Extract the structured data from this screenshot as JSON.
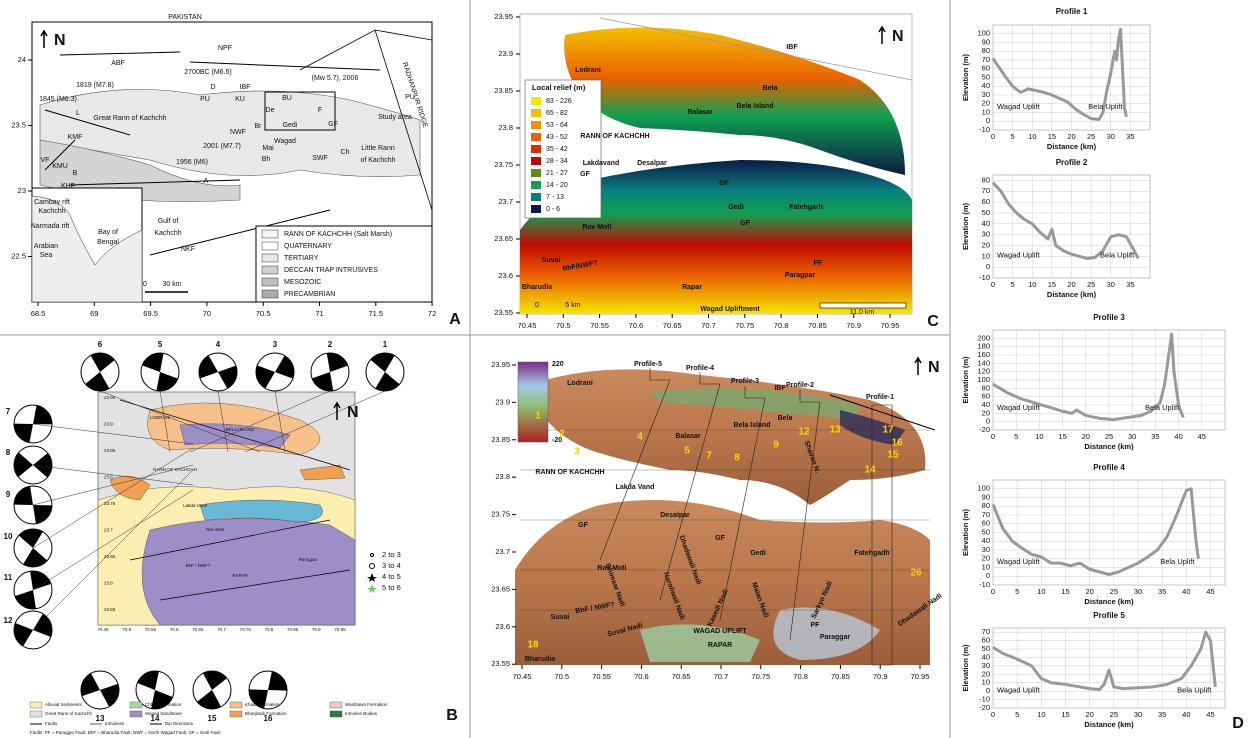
{
  "panel_a": {
    "letter": "A",
    "north": "N",
    "labels": [
      "PAKISTAN",
      "ABF",
      "1819 (M7.8)",
      "1845 (M6.3)",
      "L",
      "NPF",
      "2700BC (M6.5)",
      "(Mw 5.7), 2006",
      "IBF",
      "D",
      "KU",
      "PU",
      "BU",
      "PU",
      "De",
      "F",
      "Study area",
      "Great Rann of Kachchh",
      "Gedi",
      "GF",
      "Br",
      "NWF",
      "KMF",
      "Wagad",
      "2001 (M7.7)",
      "Mai",
      "Little Rann",
      "of Kachchh",
      "VF",
      "Bh",
      "SWF",
      "Ch",
      "KMU",
      "1956 (M6)",
      "B",
      "A",
      "KHF",
      "Gulf of",
      "Kachchh",
      "NKF",
      "Cambay rift",
      "Kachchh",
      "Narmada rift",
      "Arabian",
      "Sea",
      "Bay of",
      "Bengal",
      "RADHANPUR RIDGE"
    ],
    "legend": [
      "RANN OF KACHCHH (Salt Marsh)",
      "QUATERNARY",
      "TERTIARY",
      "DECCAN TRAP INTRUSIVES",
      "MESOZOIC",
      "PRECAMBRIAN"
    ],
    "scale_zero": "0",
    "scale": "30 km",
    "xticks": [
      68.5,
      69,
      69.5,
      70,
      70.5,
      71,
      71.5,
      72
    ],
    "yticks": [
      24,
      23.5,
      23,
      22.5
    ]
  },
  "panel_b": {
    "letter": "B",
    "north": "N",
    "mechanisms": [
      "1",
      "2",
      "3",
      "4",
      "5",
      "6",
      "7",
      "8",
      "9",
      "10",
      "11",
      "12",
      "13",
      "14",
      "15",
      "16"
    ],
    "map_labels": [
      "RANN OF KACHCHH",
      "LODRANI",
      "BELA ISLAND",
      "Lakda Vand",
      "Rav Moti",
      "BhF / NWF?",
      "Paragpar",
      "RAPAR"
    ],
    "magnitudes": [
      "2 to 3",
      "3 to 4",
      "4 to 5",
      "5 to 6"
    ],
    "legend": [
      {
        "label": "Alluvial Sediments",
        "color": "#fbeeb0"
      },
      {
        "label": "Chhara Formation",
        "color": "#a8d8a0"
      },
      {
        "label": "Khadir Formation",
        "color": "#f6c08a"
      },
      {
        "label": "Washtawa Formation",
        "color": "#f4c6d0"
      },
      {
        "label": "Great Rann of Kachchh",
        "color": "#e2e2e2"
      },
      {
        "label": "Wagad Sandstone",
        "color": "#9c8fc8"
      },
      {
        "label": "Bhanjbadi Formation",
        "color": "#f0a050"
      },
      {
        "label": "Intrusive Bodies",
        "color": "#2d7a3a"
      }
    ],
    "line_legend": [
      "Faults",
      "Intrusives",
      "Dip Directions"
    ],
    "note": "Faults: PF = Paraggar Fault, BhF = Bharudia Fault, NWF = North Wagad Fault, GF = Gedi Fault",
    "xticks": [
      70.45,
      70.5,
      70.55,
      70.6,
      70.65,
      70.7,
      70.75,
      70.8,
      70.85,
      70.9,
      70.95
    ],
    "yticks": [
      23.95,
      23.9,
      23.85,
      23.8,
      23.75,
      23.7,
      23.65,
      23.6,
      23.55
    ]
  },
  "panel_c": {
    "letter": "C",
    "north": "N",
    "legend_title": "Local relief (m)",
    "legend": [
      {
        "label": "83 - 226",
        "color": "#f7e600"
      },
      {
        "label": "65 - 82",
        "color": "#f4bf00"
      },
      {
        "label": "53 - 64",
        "color": "#f29200"
      },
      {
        "label": "43 - 52",
        "color": "#ea6000"
      },
      {
        "label": "35 - 42",
        "color": "#e02a00"
      },
      {
        "label": "28 - 34",
        "color": "#c00a00"
      },
      {
        "label": "21 - 27",
        "color": "#5f8c10"
      },
      {
        "label": "14 - 20",
        "color": "#10a050"
      },
      {
        "label": "7 - 13",
        "color": "#0a7f80"
      },
      {
        "label": "0 - 6",
        "color": "#0a1a45"
      }
    ],
    "labels": [
      "IBF",
      "Lodrani",
      "Bela",
      "Balasar",
      "Bela Island",
      "RANN OF KACHCHH",
      "Lakdavand",
      "Desalpar",
      "GF",
      "GF",
      "Gedi",
      "Fatehgarh",
      "GF",
      "Rav Motl",
      "Suvai",
      "BhF/NWF?",
      "PF",
      "Paragpar",
      "Rapar",
      "Bharudia",
      "Wagad Upliftment"
    ],
    "scale_zero": "0",
    "scale_mid": "5 km",
    "scale": "11.0 km",
    "xticks": [
      70.45,
      70.5,
      70.55,
      70.6,
      70.65,
      70.7,
      70.75,
      70.8,
      70.85,
      70.9,
      70.95
    ],
    "yticks": [
      23.95,
      23.9,
      23.85,
      23.8,
      23.75,
      23.7,
      23.65,
      23.6,
      23.55
    ]
  },
  "panel_d_map": {
    "north": "N",
    "colorbar": [
      220,
      -20
    ],
    "labels": [
      "Profile-5",
      "Profile-4",
      "Profile-3",
      "Profile-2",
      "Profile-1",
      "Lodrani",
      "IBF",
      "Bela",
      "Balasar",
      "Bela Island",
      "RANN OF KACHCHH",
      "Lakda Vand",
      "Desalpar",
      "GF",
      "GF",
      "Gedi",
      "Fatehgadh",
      "Rav Moti",
      "Bhimsar Nadi",
      "Dhadawali Nadi",
      "Shavan N.",
      "Suvai",
      "Suval Nadi",
      "BhF / NWF?",
      "Naroliwali Nadi",
      "Kasedi Nadi",
      "Malan Nadi",
      "Sarkyo Nadi",
      "Dhadawali Nadi",
      "PF",
      "Paraggar",
      "WAGAD UPLIFT",
      "RAPAR",
      "Bharudia"
    ],
    "sites": [
      "1",
      "2",
      "3",
      "4",
      "5",
      "7",
      "8",
      "9",
      "12",
      "13",
      "14",
      "15",
      "16",
      "17",
      "18",
      "26"
    ],
    "xticks": [
      70.45,
      70.5,
      70.55,
      70.6,
      70.65,
      70.7,
      70.75,
      70.8,
      70.85,
      70.9,
      70.95
    ],
    "yticks": [
      23.95,
      23.9,
      23.85,
      23.8,
      23.75,
      23.7,
      23.65,
      23.6,
      23.55
    ]
  },
  "profiles": {
    "letter": "D",
    "ylabel": "Elevation (m)",
    "xlabel": "Distance (km)",
    "left_label": "Wagad Uplift",
    "right_label": "Bela Uplift",
    "items": [
      {
        "title": "Profile 1",
        "xlim": [
          0,
          40
        ],
        "ylim": [
          -10,
          110
        ],
        "xticks": [
          0,
          5,
          10,
          15,
          20,
          25,
          30,
          35
        ],
        "yticks": [
          -10,
          0,
          10,
          20,
          30,
          40,
          50,
          60,
          70,
          80,
          90,
          100
        ],
        "x": [
          0,
          1,
          3,
          5,
          7,
          9,
          11,
          13,
          15,
          17,
          19,
          21,
          23,
          25,
          27,
          28,
          29,
          30,
          31,
          31.5,
          32,
          32.5,
          33,
          33.5,
          34
        ],
        "values": [
          72,
          65,
          52,
          40,
          33,
          37,
          35,
          33,
          30,
          26,
          22,
          14,
          8,
          3,
          2,
          10,
          35,
          55,
          80,
          70,
          95,
          105,
          60,
          15,
          5
        ]
      },
      {
        "title": "Profile 2",
        "xlim": [
          0,
          40
        ],
        "ylim": [
          -10,
          85
        ],
        "xticks": [
          0,
          5,
          10,
          15,
          20,
          25,
          30,
          35
        ],
        "yticks": [
          -10,
          0,
          10,
          20,
          30,
          40,
          50,
          60,
          70,
          80
        ],
        "x": [
          0,
          2,
          4,
          6,
          8,
          10,
          12,
          14,
          15,
          16,
          18,
          20,
          22,
          24,
          26,
          28,
          30,
          32,
          34,
          36,
          37
        ],
        "values": [
          78,
          70,
          58,
          50,
          44,
          40,
          32,
          26,
          35,
          20,
          15,
          12,
          10,
          8,
          9,
          15,
          28,
          30,
          28,
          15,
          8
        ]
      },
      {
        "title": "Profile 3",
        "xlim": [
          0,
          50
        ],
        "ylim": [
          -20,
          220
        ],
        "xticks": [
          0,
          5,
          10,
          15,
          20,
          25,
          30,
          35,
          40,
          45
        ],
        "yticks": [
          -20,
          0,
          20,
          40,
          60,
          80,
          100,
          120,
          140,
          160,
          180,
          200
        ],
        "x": [
          0,
          3,
          6,
          9,
          12,
          15,
          17,
          18,
          20,
          23,
          26,
          29,
          32,
          34,
          36,
          37,
          38,
          38.5,
          39,
          40,
          41
        ],
        "values": [
          90,
          70,
          55,
          45,
          35,
          25,
          20,
          28,
          15,
          8,
          5,
          10,
          15,
          25,
          45,
          90,
          170,
          210,
          120,
          40,
          10
        ]
      },
      {
        "title": "Profile 4",
        "xlim": [
          0,
          48
        ],
        "ylim": [
          -10,
          110
        ],
        "xticks": [
          0,
          5,
          10,
          15,
          20,
          25,
          30,
          35,
          40,
          45
        ],
        "yticks": [
          -10,
          0,
          10,
          20,
          30,
          40,
          50,
          60,
          70,
          80,
          90,
          100
        ],
        "x": [
          0,
          2,
          4,
          6,
          8,
          10,
          12,
          14,
          16,
          18,
          20,
          22,
          24,
          26,
          28,
          30,
          32,
          34,
          36,
          38,
          40,
          41,
          42,
          42.5
        ],
        "values": [
          82,
          55,
          40,
          32,
          25,
          22,
          15,
          15,
          12,
          15,
          8,
          5,
          2,
          5,
          10,
          15,
          22,
          30,
          45,
          70,
          98,
          100,
          40,
          20
        ]
      },
      {
        "title": "Profile 5",
        "xlim": [
          0,
          48
        ],
        "ylim": [
          -20,
          75
        ],
        "xticks": [
          0,
          5,
          10,
          15,
          20,
          25,
          30,
          35,
          40,
          45
        ],
        "yticks": [
          -20,
          -10,
          0,
          10,
          20,
          30,
          40,
          50,
          60,
          70
        ],
        "x": [
          0,
          2,
          5,
          8,
          10,
          12,
          15,
          18,
          20,
          22,
          23,
          24,
          25,
          27,
          30,
          33,
          36,
          39,
          41,
          43,
          44,
          45,
          46
        ],
        "values": [
          52,
          45,
          38,
          30,
          15,
          10,
          8,
          5,
          3,
          2,
          8,
          25,
          5,
          3,
          4,
          5,
          8,
          15,
          30,
          50,
          70,
          60,
          5
        ]
      }
    ]
  }
}
